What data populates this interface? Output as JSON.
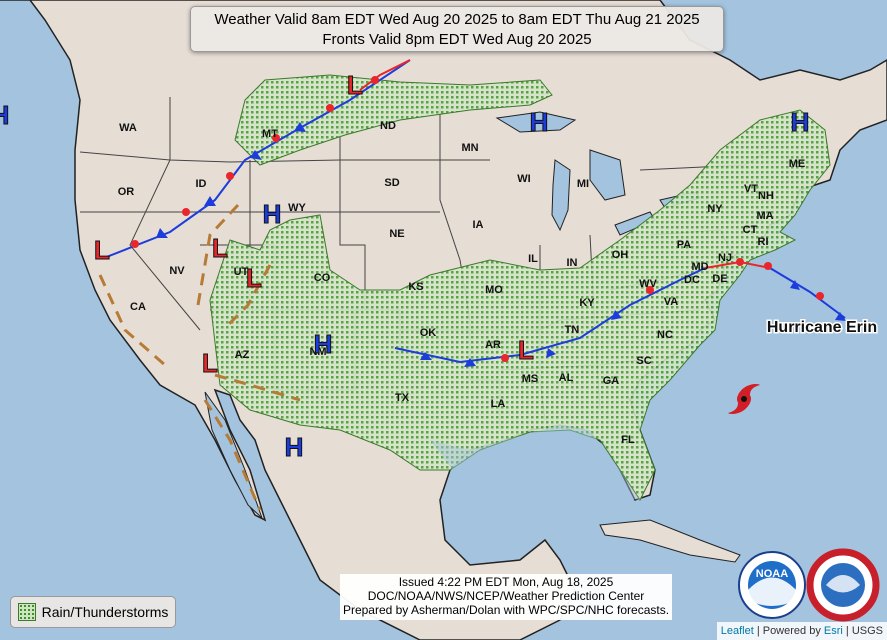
{
  "title": {
    "line1": "Weather Valid 8am EDT Wed Aug 20 2025 to 8am EDT Thu Aug 21 2025",
    "line2": "Fronts Valid 8pm EDT Wed Aug 20 2025"
  },
  "issued": {
    "line1": "Issued  4:22 PM EDT Mon, Aug 18, 2025",
    "line2": "DOC/NOAA/NWS/NCEP/Weather Prediction Center",
    "line3": "Prepared by Asherman/Dolan with WPC/SPC/NHC forecasts."
  },
  "legend": {
    "label": "Rain/Thunderstorms"
  },
  "attribution": {
    "leaflet": "Leaflet",
    "powered": "| Powered by",
    "esri": "Esri",
    "usgs": "| USGS"
  },
  "storm_label": "Hurricane Erin",
  "logos": {
    "noaa": "NOAA"
  },
  "state_labels": [
    "WA",
    "OR",
    "ID",
    "MT",
    "WY",
    "ND",
    "SD",
    "NE",
    "CA",
    "NV",
    "UT",
    "CO",
    "AZ",
    "NM",
    "TX",
    "OK",
    "KS",
    "MO",
    "AR",
    "LA",
    "MS",
    "AL",
    "TN",
    "KY",
    "IL",
    "IN",
    "OH",
    "MI",
    "WI",
    "MN",
    "IA",
    "PA",
    "NY",
    "VT",
    "NH",
    "ME",
    "MA",
    "CT",
    "RI",
    "NJ",
    "DE",
    "MD",
    "DC",
    "VA",
    "WV",
    "NC",
    "SC",
    "GA",
    "FL"
  ],
  "pressure_centers": [
    "L",
    "L",
    "L",
    "L",
    "L",
    "L",
    "H",
    "H",
    "H",
    "H",
    "H",
    "H"
  ]
}
